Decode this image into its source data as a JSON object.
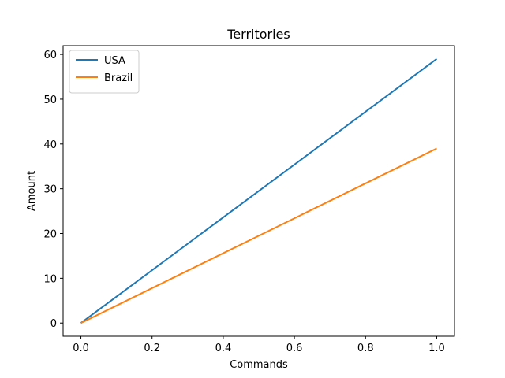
{
  "chart_data": {
    "type": "line",
    "title": "Territories",
    "xlabel": "Commands",
    "ylabel": "Amount",
    "x": [
      0.0,
      1.0
    ],
    "series": [
      {
        "name": "USA",
        "values": [
          0,
          59
        ],
        "color": "#1f77b4"
      },
      {
        "name": "Brazil",
        "values": [
          0,
          39
        ],
        "color": "#ff7f0e"
      }
    ],
    "xlim": [
      -0.05,
      1.05
    ],
    "ylim": [
      -2.95,
      61.95
    ],
    "x_ticks": [
      0.0,
      0.2,
      0.4,
      0.6,
      0.8,
      1.0
    ],
    "x_tick_labels": [
      "0.0",
      "0.2",
      "0.4",
      "0.6",
      "0.8",
      "1.0"
    ],
    "y_ticks": [
      0,
      10,
      20,
      30,
      40,
      50,
      60
    ],
    "y_tick_labels": [
      "0",
      "10",
      "20",
      "30",
      "40",
      "50",
      "60"
    ],
    "grid": false,
    "legend_position": "top-left"
  }
}
